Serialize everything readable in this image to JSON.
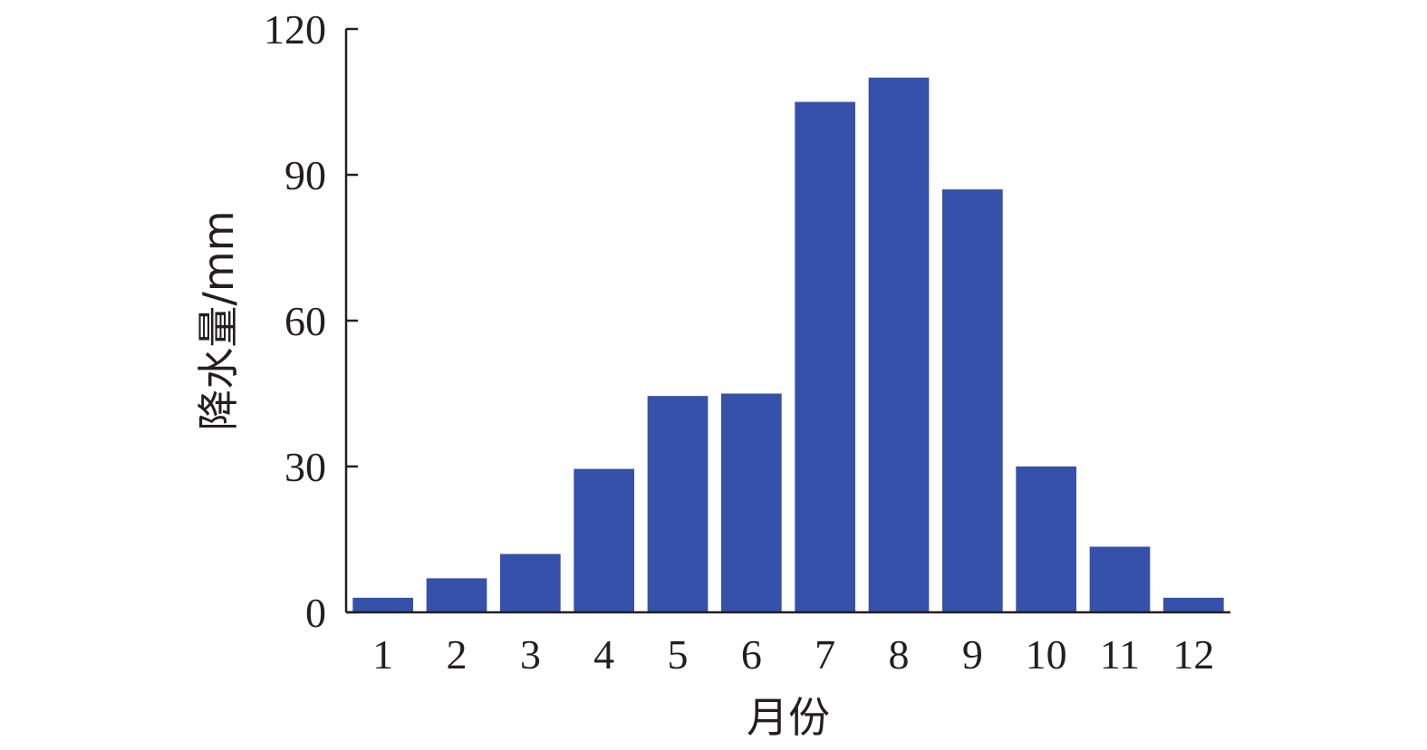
{
  "chart_data": {
    "type": "bar",
    "categories": [
      "1",
      "2",
      "3",
      "4",
      "5",
      "6",
      "7",
      "8",
      "9",
      "10",
      "11",
      "12"
    ],
    "values": [
      3,
      7,
      12,
      29.5,
      44.5,
      45,
      105,
      110,
      87,
      30,
      13.5,
      3
    ],
    "xlabel": "月份",
    "ylabel": "降水量/mm",
    "ylim": [
      0,
      120
    ],
    "yticks": [
      0,
      30,
      60,
      90,
      120
    ],
    "bar_color": "#3551aa",
    "axis_color": "#231f20",
    "grid": false,
    "legend": "none"
  }
}
